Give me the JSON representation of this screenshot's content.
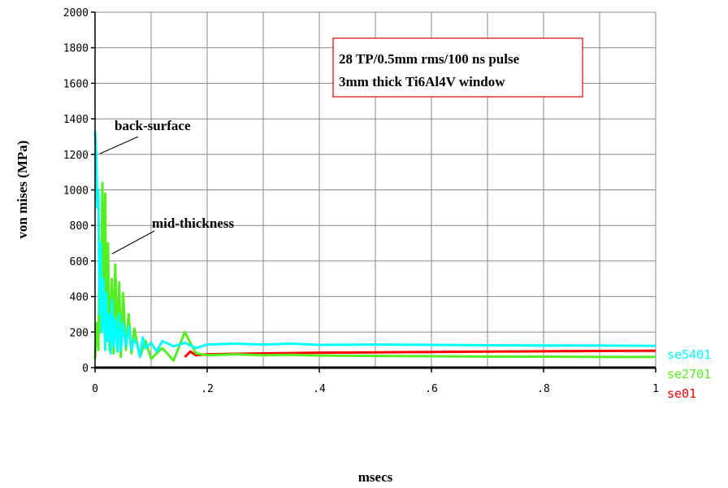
{
  "chart_data": {
    "type": "line",
    "title": "",
    "xlabel": "msecs",
    "ylabel": "von mises (MPa)",
    "xlim": [
      0,
      1
    ],
    "ylim": [
      0,
      2000
    ],
    "x_ticks": [
      {
        "value": 0,
        "label": "0"
      },
      {
        "value": 0.2,
        "label": ".2"
      },
      {
        "value": 0.4,
        "label": ".4"
      },
      {
        "value": 0.6,
        "label": ".6"
      },
      {
        "value": 0.8,
        "label": ".8"
      },
      {
        "value": 1,
        "label": "1"
      }
    ],
    "y_ticks": [
      0,
      200,
      400,
      600,
      800,
      1000,
      1200,
      1400,
      1600,
      1800,
      2000
    ],
    "grid": true,
    "legend_placement": "right",
    "annotation_box": [
      "28 TP/0.5mm rms/100 ns pulse",
      "3mm thick Ti6Al4V window"
    ],
    "annotations": [
      {
        "text": "back-surface",
        "x": 0.001,
        "y": 1330
      },
      {
        "text": "mid-thickness",
        "x": 0.015,
        "y": 860
      }
    ],
    "series": [
      {
        "name": "se5401",
        "color": "#00ffff",
        "x": [
          0,
          0.002,
          0.004,
          0.006,
          0.008,
          0.01,
          0.012,
          0.015,
          0.018,
          0.02,
          0.022,
          0.025,
          0.028,
          0.03,
          0.033,
          0.036,
          0.04,
          0.043,
          0.046,
          0.05,
          0.055,
          0.06,
          0.065,
          0.07,
          0.075,
          0.08,
          0.085,
          0.09,
          0.1,
          0.11,
          0.12,
          0.14,
          0.16,
          0.18,
          0.2,
          0.25,
          0.3,
          0.35,
          0.4,
          0.5,
          0.6,
          0.7,
          0.8,
          0.9,
          1.0
        ],
        "y": [
          1330,
          1200,
          900,
          1000,
          300,
          700,
          200,
          500,
          100,
          420,
          150,
          300,
          80,
          380,
          120,
          280,
          90,
          300,
          100,
          250,
          120,
          230,
          100,
          160,
          130,
          60,
          170,
          110,
          140,
          90,
          150,
          120,
          140,
          110,
          130,
          135,
          130,
          135,
          128,
          130,
          128,
          126,
          125,
          124,
          123
        ]
      },
      {
        "name": "se2701",
        "color": "#55ee22",
        "x": [
          0,
          0.003,
          0.006,
          0.008,
          0.01,
          0.013,
          0.015,
          0.018,
          0.02,
          0.023,
          0.026,
          0.03,
          0.033,
          0.036,
          0.04,
          0.043,
          0.046,
          0.05,
          0.055,
          0.06,
          0.065,
          0.07,
          0.08,
          0.09,
          0.1,
          0.12,
          0.14,
          0.16,
          0.17,
          0.18,
          0.2,
          0.25,
          0.3,
          0.35,
          0.4,
          0.5,
          0.6,
          0.7,
          0.8,
          0.9,
          1.0
        ],
        "y": [
          50,
          250,
          100,
          600,
          200,
          1040,
          300,
          980,
          150,
          700,
          100,
          500,
          80,
          580,
          120,
          480,
          60,
          420,
          100,
          300,
          80,
          220,
          60,
          150,
          50,
          110,
          40,
          200,
          140,
          80,
          70,
          75,
          70,
          72,
          68,
          66,
          64,
          62,
          62,
          60,
          60
        ]
      },
      {
        "name": "se01",
        "color": "#ff0000",
        "x": [
          0.16,
          0.17,
          0.18,
          0.2,
          0.25,
          0.3,
          0.35,
          0.4,
          0.5,
          0.6,
          0.7,
          0.8,
          0.9,
          1.0
        ],
        "y": [
          60,
          90,
          70,
          75,
          78,
          80,
          82,
          84,
          86,
          88,
          90,
          92,
          94,
          95
        ]
      }
    ]
  }
}
